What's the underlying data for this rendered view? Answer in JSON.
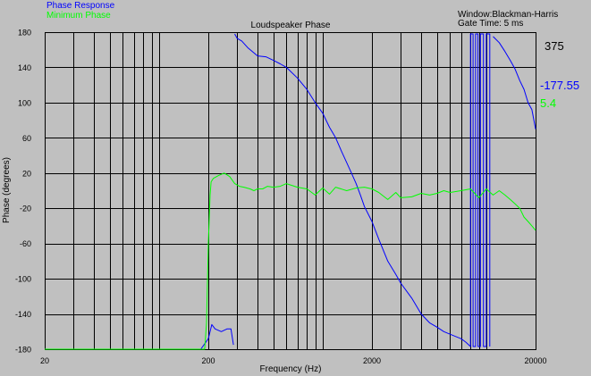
{
  "window": {
    "line1": "Window:Blackman-Harris",
    "line2": "Gate Time: 5 ms"
  },
  "readout": {
    "cursor_x": "375"
  },
  "chart_data": {
    "type": "line",
    "title": "Loudspeaker Phase",
    "xlabel": "Frequency (Hz)",
    "ylabel": "Phase (degrees)",
    "x_scale": "log",
    "xlim": [
      20,
      20000
    ],
    "ylim": [
      -180,
      180
    ],
    "grid": true,
    "x_ticks": [
      20,
      200,
      2000,
      20000
    ],
    "x_tick_labels": [
      "20",
      "200",
      "2000",
      "20000"
    ],
    "y_ticks": [
      -180,
      -140,
      -100,
      -60,
      -20,
      20,
      60,
      100,
      140,
      180
    ],
    "y_tick_labels": [
      "-180",
      "-140",
      "-100",
      "-60",
      "-20",
      "20",
      "60",
      "100",
      "140",
      "180"
    ],
    "colors": {
      "background": "#c0c0c0",
      "grid": "#000000",
      "axis_text": "#000000"
    },
    "series": [
      {
        "name": "Phase Response",
        "color": "#0000ff",
        "readout": "-177.55",
        "x": [
          20,
          180,
          200,
          210,
          220,
          240,
          260,
          275,
          285,
          290,
          300,
          320,
          350,
          400,
          450,
          500,
          550,
          600,
          700,
          800,
          900,
          1000,
          1100,
          1200,
          1300,
          1400,
          1500,
          1600,
          1700,
          1800,
          2000,
          2200,
          2500,
          2800,
          3000,
          3500,
          4000,
          4500,
          5000,
          5500,
          6000,
          7000,
          7500,
          7800,
          8000,
          8000,
          8300,
          8300,
          8600,
          8600,
          8900,
          8900,
          9200,
          9200,
          9600,
          9600,
          10000,
          10000,
          10500,
          10500,
          11000,
          12000,
          13000,
          14000,
          15000,
          16000,
          17000,
          18000,
          19000,
          20000
        ],
        "y": [
          -180,
          -180,
          -168,
          -152,
          -157,
          -160,
          -157,
          -157,
          -175,
          178,
          173,
          170,
          162,
          153,
          152,
          148,
          144,
          140,
          128,
          115,
          100,
          88,
          72,
          60,
          45,
          32,
          20,
          8,
          -5,
          -18,
          -35,
          -55,
          -80,
          -95,
          -105,
          -122,
          -140,
          -150,
          -155,
          -160,
          -163,
          -168,
          -172,
          -175,
          -177,
          178,
          178,
          -177,
          -177,
          178,
          178,
          -177,
          -177,
          178,
          178,
          -177,
          -177,
          178,
          178,
          -177,
          175,
          168,
          158,
          148,
          138,
          125,
          115,
          100,
          92,
          70
        ]
      },
      {
        "name": "Minimum Phase",
        "color": "#00ff00",
        "readout": "5.4",
        "x": [
          20,
          190,
          195,
          200,
          205,
          208,
          215,
          230,
          250,
          270,
          290,
          310,
          330,
          360,
          380,
          400,
          430,
          460,
          500,
          550,
          600,
          700,
          800,
          900,
          1000,
          1100,
          1200,
          1400,
          1600,
          1800,
          2000,
          2200,
          2500,
          2800,
          3000,
          3500,
          4000,
          4500,
          5000,
          5500,
          6000,
          7000,
          8000,
          9000,
          10000,
          11000,
          12000,
          13000,
          14000,
          15000,
          16000,
          17000,
          18000,
          19000,
          20000
        ],
        "y": [
          -180,
          -180,
          -150,
          -60,
          -5,
          10,
          14,
          17,
          20,
          16,
          8,
          5,
          4,
          2,
          0,
          2,
          2,
          5,
          4,
          5,
          8,
          4,
          2,
          -5,
          3,
          -4,
          4,
          0,
          3,
          4,
          2,
          -2,
          -10,
          -2,
          -8,
          -7,
          -3,
          -5,
          -3,
          0,
          -2,
          0,
          2,
          -8,
          2,
          -5,
          0,
          -5,
          -10,
          -15,
          -20,
          -30,
          -35,
          -40,
          -45
        ]
      }
    ]
  }
}
